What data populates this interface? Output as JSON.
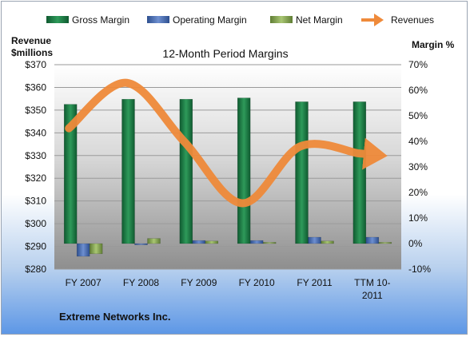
{
  "chart_data": {
    "type": "bar",
    "title": "12-Month Period Margins",
    "left_axis_label_line1": "Revenue",
    "left_axis_label_line2": "$millions",
    "right_axis_label": "Margin %",
    "company": "Extreme Networks Inc.",
    "categories": [
      "FY 2007",
      "FY 2008",
      "FY 2009",
      "FY 2010",
      "FY 2011",
      "TTM 10-2011"
    ],
    "category_lines": [
      [
        "FY 2007"
      ],
      [
        "FY 2008"
      ],
      [
        "FY 2009"
      ],
      [
        "FY 2010"
      ],
      [
        "FY 2011"
      ],
      [
        "TTM 10-",
        "2011"
      ]
    ],
    "left_ylim": [
      280,
      370
    ],
    "left_ticks": [
      280,
      290,
      300,
      310,
      320,
      330,
      340,
      350,
      360,
      370
    ],
    "left_tick_labels": [
      "$280",
      "$290",
      "$300",
      "$310",
      "$320",
      "$330",
      "$340",
      "$350",
      "$360",
      "$370"
    ],
    "right_ylim": [
      -10,
      70
    ],
    "right_ticks": [
      -10,
      0,
      10,
      20,
      30,
      40,
      50,
      60,
      70
    ],
    "right_tick_labels": [
      "-10%",
      "0%",
      "10%",
      "20%",
      "30%",
      "40%",
      "50%",
      "60%",
      "70%"
    ],
    "series": [
      {
        "name": "Gross Margin",
        "axis": "right",
        "kind": "bar",
        "color": "#1e7a46",
        "values": [
          54.5,
          56.5,
          56.5,
          57,
          55.5,
          55.5
        ]
      },
      {
        "name": "Operating Margin",
        "axis": "right",
        "kind": "bar",
        "color": "#4f6fb0",
        "values": [
          -5,
          -0.5,
          1.2,
          1.2,
          2.5,
          2.5
        ]
      },
      {
        "name": "Net Margin",
        "axis": "right",
        "kind": "bar",
        "color": "#8aa95a",
        "values": [
          -4,
          2,
          1,
          0.5,
          1,
          0.5
        ]
      },
      {
        "name": "Revenues",
        "axis": "left",
        "kind": "line",
        "color": "#ef8a3a",
        "values": [
          342,
          362,
          336,
          309,
          334,
          331
        ]
      }
    ],
    "grid": true,
    "legend_position": "top"
  }
}
